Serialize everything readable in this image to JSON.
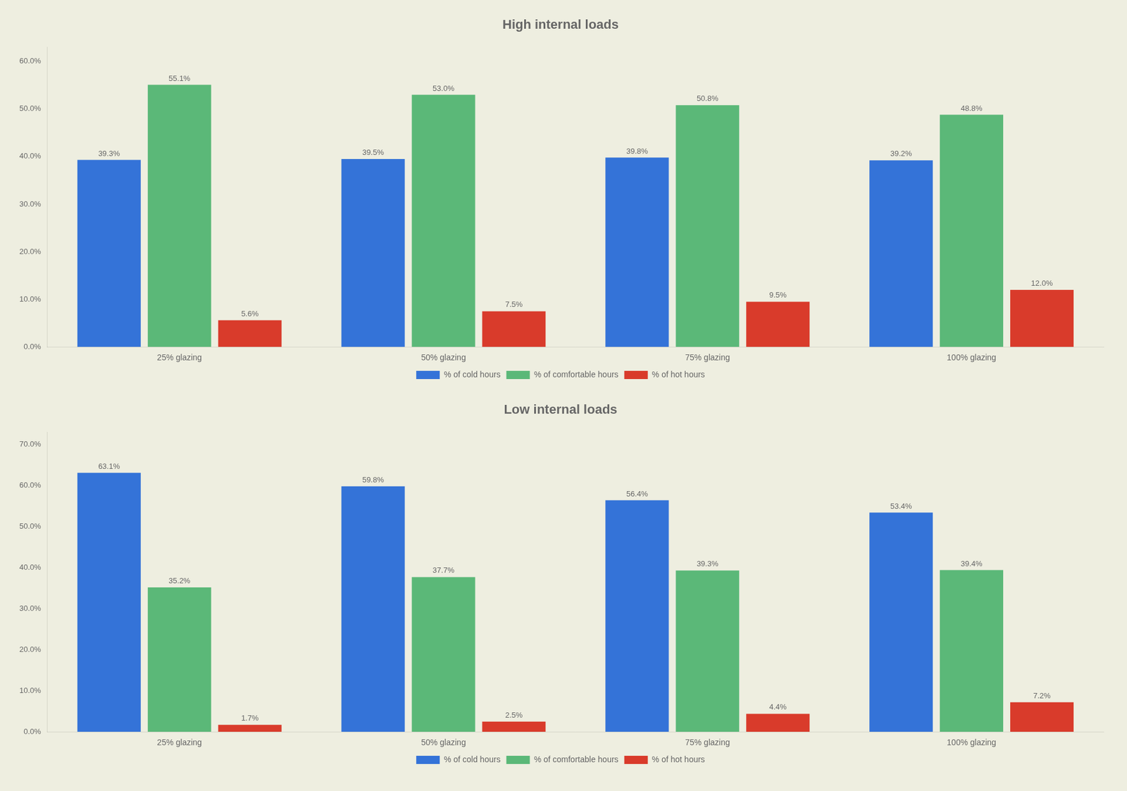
{
  "chart_data": [
    {
      "type": "bar",
      "title": "High internal loads",
      "categories": [
        "25% glazing",
        "50% glazing",
        "75% glazing",
        "100% glazing"
      ],
      "series": [
        {
          "name": "% of cold hours",
          "color": "#3473D8",
          "values": [
            39.3,
            39.5,
            39.8,
            39.2
          ],
          "value_labels": [
            "39.3%",
            "39.5%",
            "39.8%",
            "39.2%"
          ]
        },
        {
          "name": "% of comfortable hours",
          "color": "#5BB878",
          "values": [
            55.1,
            53.0,
            50.8,
            48.8
          ],
          "value_labels": [
            "55.1%",
            "53.0%",
            "50.8%",
            "48.8%"
          ]
        },
        {
          "name": "% of hot hours",
          "color": "#D93B2B",
          "values": [
            5.6,
            7.5,
            9.5,
            12.0
          ],
          "value_labels": [
            "5.6%",
            "7.5%",
            "9.5%",
            "12.0%"
          ]
        }
      ],
      "ylim": [
        0,
        63
      ],
      "yticks": [
        {
          "value": 0,
          "label": "0.0%"
        },
        {
          "value": 10,
          "label": "10.0%"
        },
        {
          "value": 20,
          "label": "20.0%"
        },
        {
          "value": 30,
          "label": "30.0%"
        },
        {
          "value": 40,
          "label": "40.0%"
        },
        {
          "value": 50,
          "label": "50.0%"
        },
        {
          "value": 60,
          "label": "60.0%"
        }
      ],
      "grid": false,
      "legend": "bottom",
      "data_labels": true
    },
    {
      "type": "bar",
      "title": "Low internal loads",
      "categories": [
        "25% glazing",
        "50% glazing",
        "75% glazing",
        "100% glazing"
      ],
      "series": [
        {
          "name": "% of cold hours",
          "color": "#3473D8",
          "values": [
            63.1,
            59.8,
            56.4,
            53.4
          ],
          "value_labels": [
            "63.1%",
            "59.8%",
            "56.4%",
            "53.4%"
          ]
        },
        {
          "name": "% of comfortable hours",
          "color": "#5BB878",
          "values": [
            35.2,
            37.7,
            39.3,
            39.4
          ],
          "value_labels": [
            "35.2%",
            "37.7%",
            "39.3%",
            "39.4%"
          ]
        },
        {
          "name": "% of hot hours",
          "color": "#D93B2B",
          "values": [
            1.7,
            2.5,
            4.4,
            7.2
          ],
          "value_labels": [
            "1.7%",
            "2.5%",
            "4.4%",
            "7.2%"
          ]
        }
      ],
      "ylim": [
        0,
        73
      ],
      "yticks": [
        {
          "value": 0,
          "label": "0.0%"
        },
        {
          "value": 10,
          "label": "10.0%"
        },
        {
          "value": 20,
          "label": "20.0%"
        },
        {
          "value": 30,
          "label": "30.0%"
        },
        {
          "value": 40,
          "label": "40.0%"
        },
        {
          "value": 50,
          "label": "50.0%"
        },
        {
          "value": 60,
          "label": "60.0%"
        },
        {
          "value": 70,
          "label": "70.0%"
        }
      ],
      "grid": false,
      "legend": "bottom",
      "data_labels": true
    }
  ]
}
